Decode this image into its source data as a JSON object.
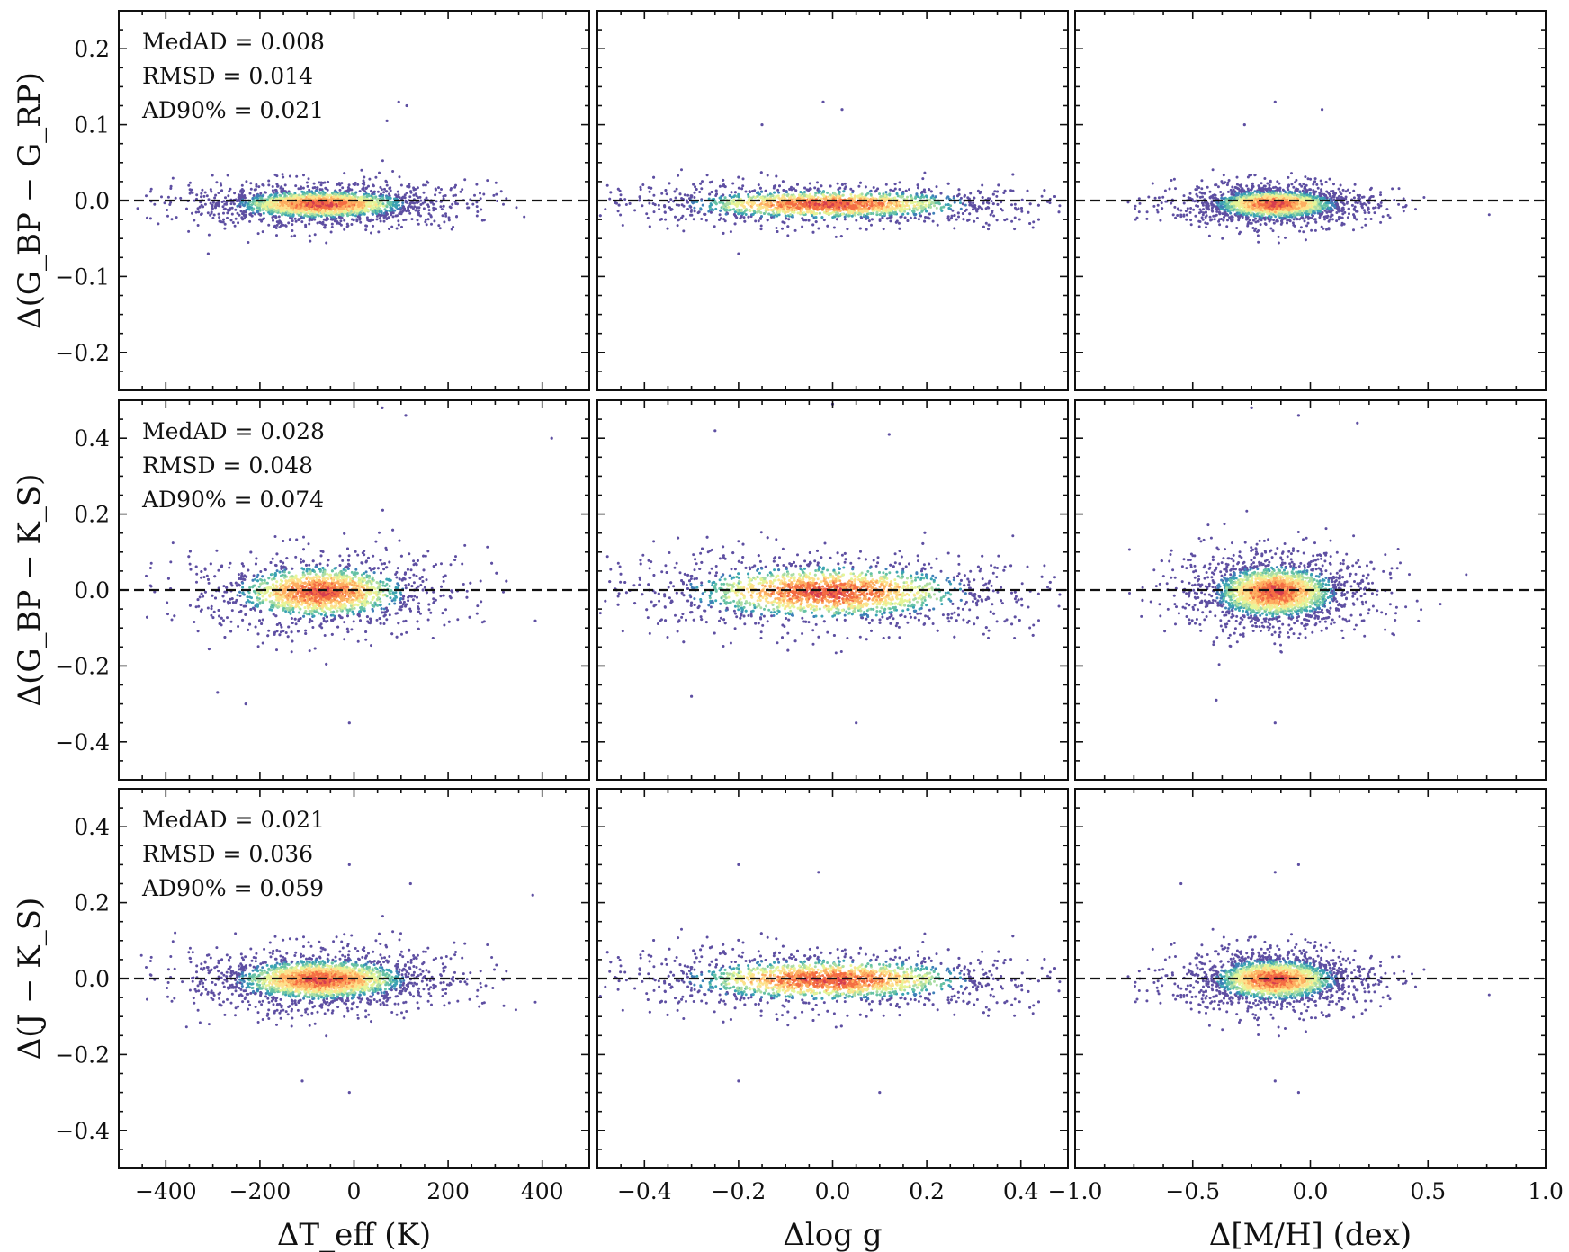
{
  "chart_data": {
    "type": "scatter",
    "rows": [
      {
        "ylabel": "Δ(G_BP − G_RP)",
        "ylim": [
          -0.25,
          0.25
        ],
        "yticks": [
          -0.2,
          -0.1,
          0.0,
          0.1,
          0.2
        ],
        "ytick_labels": [
          "−0.2",
          "−0.1",
          "0.0",
          "0.1",
          "0.2"
        ],
        "stats": [
          "MedAD = 0.008",
          "RMSD = 0.014",
          "AD90% = 0.021"
        ],
        "density_center_y": -0.005,
        "spread_y": 0.012,
        "outlier_points": [
          {
            "panel": 0,
            "x": 95,
            "y": 0.13
          },
          {
            "panel": 0,
            "x": 112,
            "y": 0.125
          },
          {
            "panel": 0,
            "x": 70,
            "y": 0.105
          },
          {
            "panel": 0,
            "x": -310,
            "y": -0.07
          },
          {
            "panel": 1,
            "x": -0.02,
            "y": 0.13
          },
          {
            "panel": 1,
            "x": 0.02,
            "y": 0.12
          },
          {
            "panel": 1,
            "x": -0.15,
            "y": 0.1
          },
          {
            "panel": 1,
            "x": -0.2,
            "y": -0.07
          },
          {
            "panel": 2,
            "x": -0.15,
            "y": 0.13
          },
          {
            "panel": 2,
            "x": 0.05,
            "y": 0.12
          },
          {
            "panel": 2,
            "x": -0.28,
            "y": 0.1
          }
        ]
      },
      {
        "ylabel": "Δ(G_BP − K_S)",
        "ylim": [
          -0.5,
          0.5
        ],
        "yticks": [
          -0.4,
          -0.2,
          0.0,
          0.2,
          0.4
        ],
        "ytick_labels": [
          "−0.4",
          "−0.2",
          "0.0",
          "0.2",
          "0.4"
        ],
        "stats": [
          "MedAD = 0.028",
          "RMSD = 0.048",
          "AD90% = 0.074"
        ],
        "density_center_y": -0.005,
        "spread_y": 0.045,
        "outlier_points": [
          {
            "panel": 0,
            "x": 420,
            "y": 0.4
          },
          {
            "panel": 0,
            "x": -10,
            "y": -0.35
          },
          {
            "panel": 0,
            "x": -230,
            "y": -0.3
          },
          {
            "panel": 0,
            "x": -290,
            "y": -0.27
          },
          {
            "panel": 0,
            "x": 60,
            "y": 0.48
          },
          {
            "panel": 0,
            "x": 110,
            "y": 0.46
          },
          {
            "panel": 1,
            "x": 0.05,
            "y": -0.35
          },
          {
            "panel": 1,
            "x": -0.25,
            "y": 0.42
          },
          {
            "panel": 1,
            "x": 0.0,
            "y": 0.49
          },
          {
            "panel": 1,
            "x": 0.12,
            "y": 0.41
          },
          {
            "panel": 1,
            "x": -0.3,
            "y": -0.28
          },
          {
            "panel": 2,
            "x": -0.15,
            "y": -0.35
          },
          {
            "panel": 2,
            "x": -0.4,
            "y": -0.29
          },
          {
            "panel": 2,
            "x": -0.25,
            "y": 0.48
          },
          {
            "panel": 2,
            "x": 0.2,
            "y": 0.44
          },
          {
            "panel": 2,
            "x": -0.05,
            "y": 0.46
          }
        ]
      },
      {
        "ylabel": "Δ(J − K_S)",
        "ylim": [
          -0.5,
          0.5
        ],
        "yticks": [
          -0.4,
          -0.2,
          0.0,
          0.2,
          0.4
        ],
        "ytick_labels": [
          "−0.4",
          "−0.2",
          "0.0",
          "0.2",
          "0.4"
        ],
        "stats": [
          "MedAD = 0.021",
          "RMSD = 0.036",
          "AD90% = 0.059"
        ],
        "density_center_y": -0.003,
        "spread_y": 0.035,
        "outlier_points": [
          {
            "panel": 0,
            "x": -10,
            "y": 0.3
          },
          {
            "panel": 0,
            "x": -10,
            "y": -0.3
          },
          {
            "panel": 0,
            "x": -110,
            "y": -0.27
          },
          {
            "panel": 0,
            "x": 380,
            "y": 0.22
          },
          {
            "panel": 0,
            "x": 120,
            "y": 0.25
          },
          {
            "panel": 1,
            "x": -0.2,
            "y": 0.3
          },
          {
            "panel": 1,
            "x": 0.1,
            "y": -0.3
          },
          {
            "panel": 1,
            "x": -0.2,
            "y": -0.27
          },
          {
            "panel": 1,
            "x": -0.03,
            "y": 0.28
          },
          {
            "panel": 2,
            "x": -0.15,
            "y": 0.28
          },
          {
            "panel": 2,
            "x": -0.05,
            "y": 0.3
          },
          {
            "panel": 2,
            "x": -0.05,
            "y": -0.3
          },
          {
            "panel": 2,
            "x": -0.15,
            "y": -0.27
          },
          {
            "panel": 2,
            "x": -0.55,
            "y": 0.25
          }
        ]
      }
    ],
    "columns": [
      {
        "xlabel": "ΔT_eff (K)",
        "xlim": [
          -500,
          500
        ],
        "xticks": [
          -400,
          -200,
          0,
          200,
          400
        ],
        "xtick_labels": [
          "−400",
          "−200",
          "0",
          "200",
          "400"
        ],
        "density_center_x": -70,
        "spread_x": 120,
        "x_extent": [
          -460,
          470
        ]
      },
      {
        "xlabel": "Δlog g",
        "xlim": [
          -0.5,
          0.5
        ],
        "xticks": [
          -0.4,
          -0.2,
          0.0,
          0.2,
          0.4
        ],
        "xtick_labels": [
          "−0.4",
          "−0.2",
          "0.0",
          "0.2",
          "0.4"
        ],
        "density_center_x": -0.01,
        "spread_x": 0.2,
        "x_extent": [
          -0.5,
          0.5
        ]
      },
      {
        "xlabel": "Δ[M/H] (dex)",
        "xlim": [
          -1.0,
          1.0
        ],
        "xticks": [
          -1.0,
          -0.5,
          0.0,
          0.5,
          1.0
        ],
        "xtick_labels": [
          "−1.0",
          "−0.5",
          "0.0",
          "0.5",
          "1.0"
        ],
        "density_center_x": -0.15,
        "spread_x": 0.17,
        "x_extent": [
          -1.0,
          0.95
        ]
      }
    ],
    "reference_line_y": 0.0,
    "colormap": [
      "#5e4fa2",
      "#3f7fb8",
      "#3aa2b3",
      "#66c2a5",
      "#abdda4",
      "#e6f598",
      "#fee08b",
      "#fdae61",
      "#f46d43",
      "#d53e4f"
    ]
  }
}
